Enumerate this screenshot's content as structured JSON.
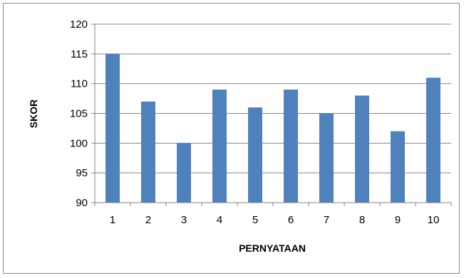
{
  "chart_data": {
    "type": "bar",
    "title": "",
    "xlabel": "PERNYATAAN",
    "ylabel": "SKOR",
    "categories": [
      "1",
      "2",
      "3",
      "4",
      "5",
      "6",
      "7",
      "8",
      "9",
      "10"
    ],
    "values": [
      115,
      107,
      100,
      109,
      106,
      109,
      105,
      108,
      102,
      111
    ],
    "ylim": [
      90,
      120
    ],
    "yticks": [
      "90",
      "95",
      "100",
      "105",
      "110",
      "115",
      "120"
    ],
    "grid": true,
    "legend": "none",
    "colors": {
      "bar": "#4f81bd",
      "grid": "#868686",
      "axis": "#868686",
      "frame": "#8c8c8c"
    }
  }
}
